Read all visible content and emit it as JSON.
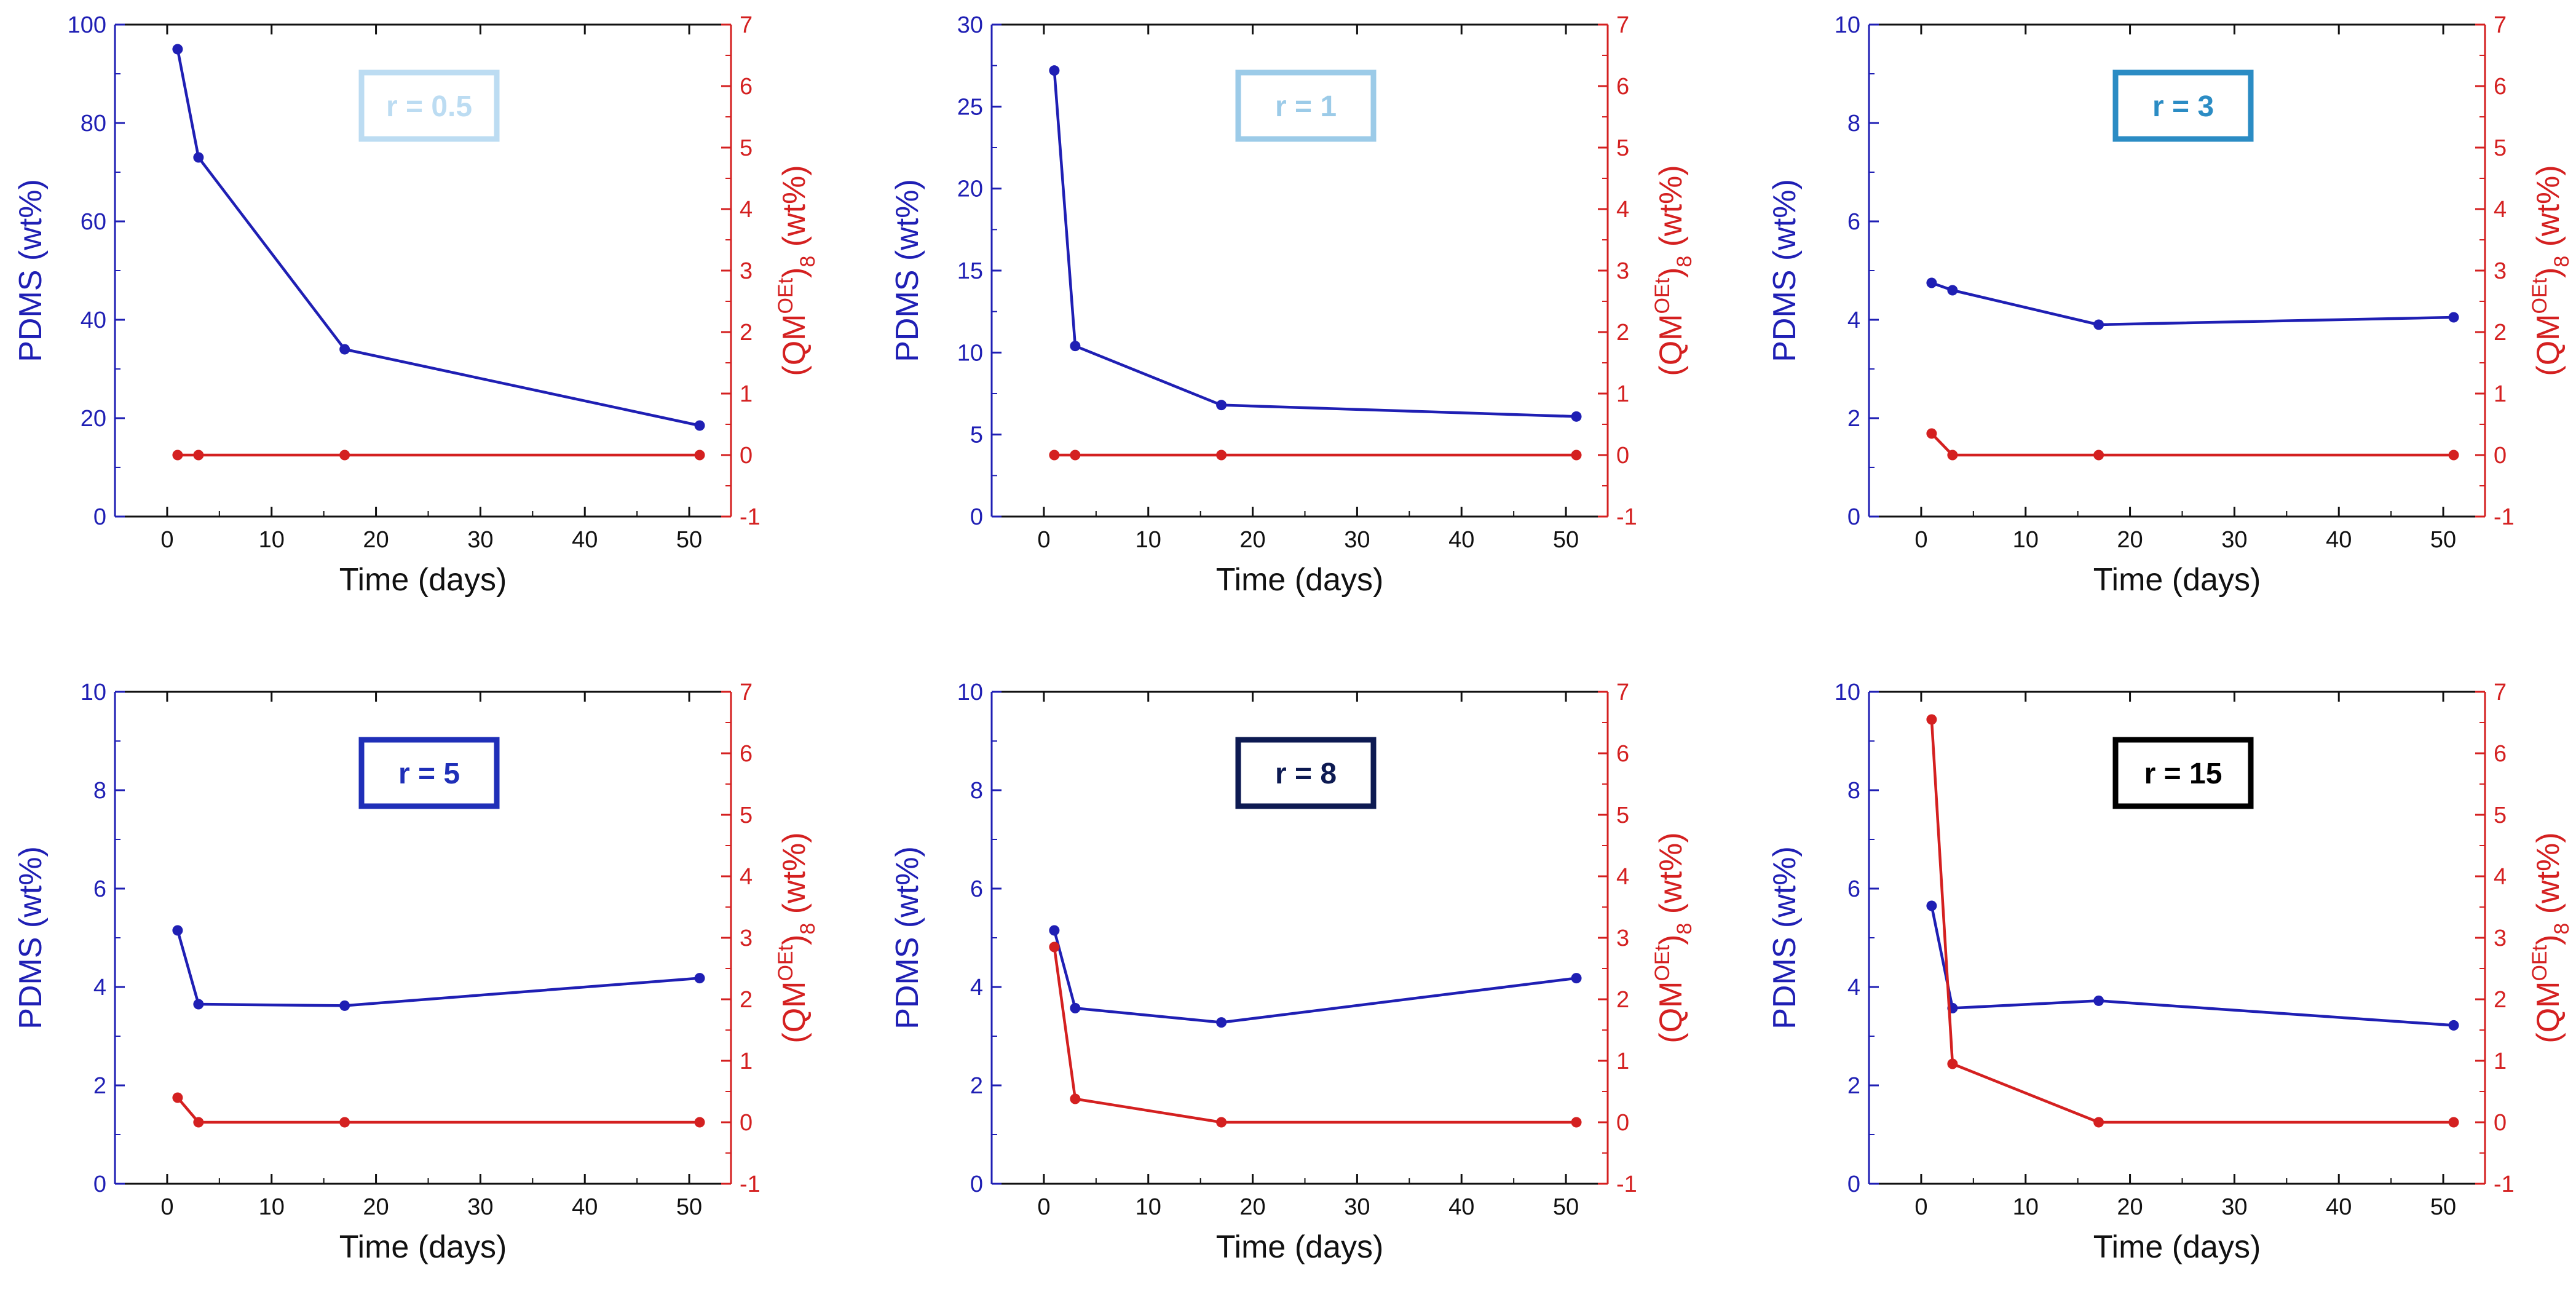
{
  "chart_data": [
    {
      "type": "line",
      "title": "r = 0.5",
      "title_color": "#bcdcf2",
      "xlabel": "Time (days)",
      "ylabel": "PDMS (wt%)",
      "y2label_main": "(QM",
      "y2label_sup": "OEt",
      "y2label_close": ")",
      "y2label_sub": "8",
      "y2label_tail": " (wt%)",
      "xlim": [
        -5,
        54
      ],
      "xticks": [
        "0",
        "10",
        "20",
        "30",
        "40",
        "50"
      ],
      "ylim": [
        0,
        100
      ],
      "yticks": [
        "0",
        "20",
        "40",
        "60",
        "80",
        "100"
      ],
      "y2lim": [
        -1,
        7
      ],
      "y2ticks": [
        "-1",
        "0",
        "1",
        "2",
        "3",
        "4",
        "5",
        "6",
        "7"
      ],
      "series": [
        {
          "name": "PDMS",
          "axis": "left",
          "color": "#1f1fb4",
          "x": [
            1,
            3,
            17,
            51
          ],
          "y": [
            95,
            73,
            34,
            18.5
          ]
        },
        {
          "name": "QM",
          "axis": "right",
          "color": "#d42020",
          "x": [
            1,
            3,
            17,
            51
          ],
          "y": [
            0,
            0,
            0,
            0
          ]
        }
      ]
    },
    {
      "type": "line",
      "title": "r = 1",
      "title_color": "#9ccbe8",
      "xlabel": "Time (days)",
      "ylabel": "PDMS (wt%)",
      "y2label_main": "(QM",
      "y2label_sup": "OEt",
      "y2label_close": ")",
      "y2label_sub": "8",
      "y2label_tail": " (wt%)",
      "xlim": [
        -5,
        54
      ],
      "xticks": [
        "0",
        "10",
        "20",
        "30",
        "40",
        "50"
      ],
      "ylim": [
        0,
        30
      ],
      "yticks": [
        "0",
        "5",
        "10",
        "15",
        "20",
        "25",
        "30"
      ],
      "y2lim": [
        -1,
        7
      ],
      "y2ticks": [
        "-1",
        "0",
        "1",
        "2",
        "3",
        "4",
        "5",
        "6",
        "7"
      ],
      "series": [
        {
          "name": "PDMS",
          "axis": "left",
          "color": "#1f1fb4",
          "x": [
            1,
            3,
            17,
            51
          ],
          "y": [
            27.2,
            10.4,
            6.8,
            6.1
          ]
        },
        {
          "name": "QM",
          "axis": "right",
          "color": "#d42020",
          "x": [
            1,
            3,
            17,
            51
          ],
          "y": [
            0,
            0,
            0,
            0
          ]
        }
      ]
    },
    {
      "type": "line",
      "title": "r = 3",
      "title_color": "#2b8cc4",
      "xlabel": "Time (days)",
      "ylabel": "PDMS (wt%)",
      "y2label_main": "(QM",
      "y2label_sup": "OEt",
      "y2label_close": ")",
      "y2label_sub": "8",
      "y2label_tail": " (wt%)",
      "xlim": [
        -5,
        54
      ],
      "xticks": [
        "0",
        "10",
        "20",
        "30",
        "40",
        "50"
      ],
      "ylim": [
        0,
        10
      ],
      "yticks": [
        "0",
        "2",
        "4",
        "6",
        "8",
        "10"
      ],
      "y2lim": [
        -1,
        7
      ],
      "y2ticks": [
        "-1",
        "0",
        "1",
        "2",
        "3",
        "4",
        "5",
        "6",
        "7"
      ],
      "series": [
        {
          "name": "PDMS",
          "axis": "left",
          "color": "#1f1fb4",
          "x": [
            1,
            3,
            17,
            51
          ],
          "y": [
            4.75,
            4.6,
            3.9,
            4.05
          ]
        },
        {
          "name": "QM",
          "axis": "right",
          "color": "#d42020",
          "x": [
            1,
            3,
            17,
            51
          ],
          "y": [
            0.35,
            0,
            0,
            0
          ]
        }
      ]
    },
    {
      "type": "line",
      "title": "r = 5",
      "title_color": "#1f2fb8",
      "xlabel": "Time (days)",
      "ylabel": "PDMS (wt%)",
      "y2label_main": "(QM",
      "y2label_sup": "OEt",
      "y2label_close": ")",
      "y2label_sub": "8",
      "y2label_tail": " (wt%)",
      "xlim": [
        -5,
        54
      ],
      "xticks": [
        "0",
        "10",
        "20",
        "30",
        "40",
        "50"
      ],
      "ylim": [
        0,
        10
      ],
      "yticks": [
        "0",
        "2",
        "4",
        "6",
        "8",
        "10"
      ],
      "y2lim": [
        -1,
        7
      ],
      "y2ticks": [
        "-1",
        "0",
        "1",
        "2",
        "3",
        "4",
        "5",
        "6",
        "7"
      ],
      "series": [
        {
          "name": "PDMS",
          "axis": "left",
          "color": "#1f1fb4",
          "x": [
            1,
            3,
            17,
            51
          ],
          "y": [
            5.15,
            3.65,
            3.62,
            4.18
          ]
        },
        {
          "name": "QM",
          "axis": "right",
          "color": "#d42020",
          "x": [
            1,
            3,
            17,
            51
          ],
          "y": [
            0.4,
            0,
            0,
            0
          ]
        }
      ]
    },
    {
      "type": "line",
      "title": "r = 8",
      "title_color": "#0d1a52",
      "xlabel": "Time (days)",
      "ylabel": "PDMS (wt%)",
      "y2label_main": "(QM",
      "y2label_sup": "OEt",
      "y2label_close": ")",
      "y2label_sub": "8",
      "y2label_tail": " (wt%)",
      "xlim": [
        -5,
        54
      ],
      "xticks": [
        "0",
        "10",
        "20",
        "30",
        "40",
        "50"
      ],
      "ylim": [
        0,
        10
      ],
      "yticks": [
        "0",
        "2",
        "4",
        "6",
        "8",
        "10"
      ],
      "y2lim": [
        -1,
        7
      ],
      "y2ticks": [
        "-1",
        "0",
        "1",
        "2",
        "3",
        "4",
        "5",
        "6",
        "7"
      ],
      "series": [
        {
          "name": "PDMS",
          "axis": "left",
          "color": "#1f1fb4",
          "x": [
            1,
            3,
            17,
            51
          ],
          "y": [
            5.15,
            3.57,
            3.28,
            4.18
          ]
        },
        {
          "name": "QM",
          "axis": "right",
          "color": "#d42020",
          "x": [
            1,
            3,
            17,
            51
          ],
          "y": [
            2.85,
            0.38,
            0,
            0
          ]
        }
      ]
    },
    {
      "type": "line",
      "title": "r = 15",
      "title_color": "#000000",
      "xlabel": "Time (days)",
      "ylabel": "PDMS (wt%)",
      "y2label_main": "(QM",
      "y2label_sup": "OEt",
      "y2label_close": ")",
      "y2label_sub": "8",
      "y2label_tail": " (wt%)",
      "xlim": [
        -5,
        54
      ],
      "xticks": [
        "0",
        "10",
        "20",
        "30",
        "40",
        "50"
      ],
      "ylim": [
        0,
        10
      ],
      "yticks": [
        "0",
        "2",
        "4",
        "6",
        "8",
        "10"
      ],
      "y2lim": [
        -1,
        7
      ],
      "y2ticks": [
        "-1",
        "0",
        "1",
        "2",
        "3",
        "4",
        "5",
        "6",
        "7"
      ],
      "series": [
        {
          "name": "PDMS",
          "axis": "left",
          "color": "#1f1fb4",
          "x": [
            1,
            3,
            17,
            51
          ],
          "y": [
            5.65,
            3.57,
            3.72,
            3.22
          ]
        },
        {
          "name": "QM",
          "axis": "right",
          "color": "#d42020",
          "x": [
            1,
            3,
            17,
            51
          ],
          "y": [
            6.55,
            0.95,
            0,
            0
          ]
        }
      ]
    }
  ]
}
